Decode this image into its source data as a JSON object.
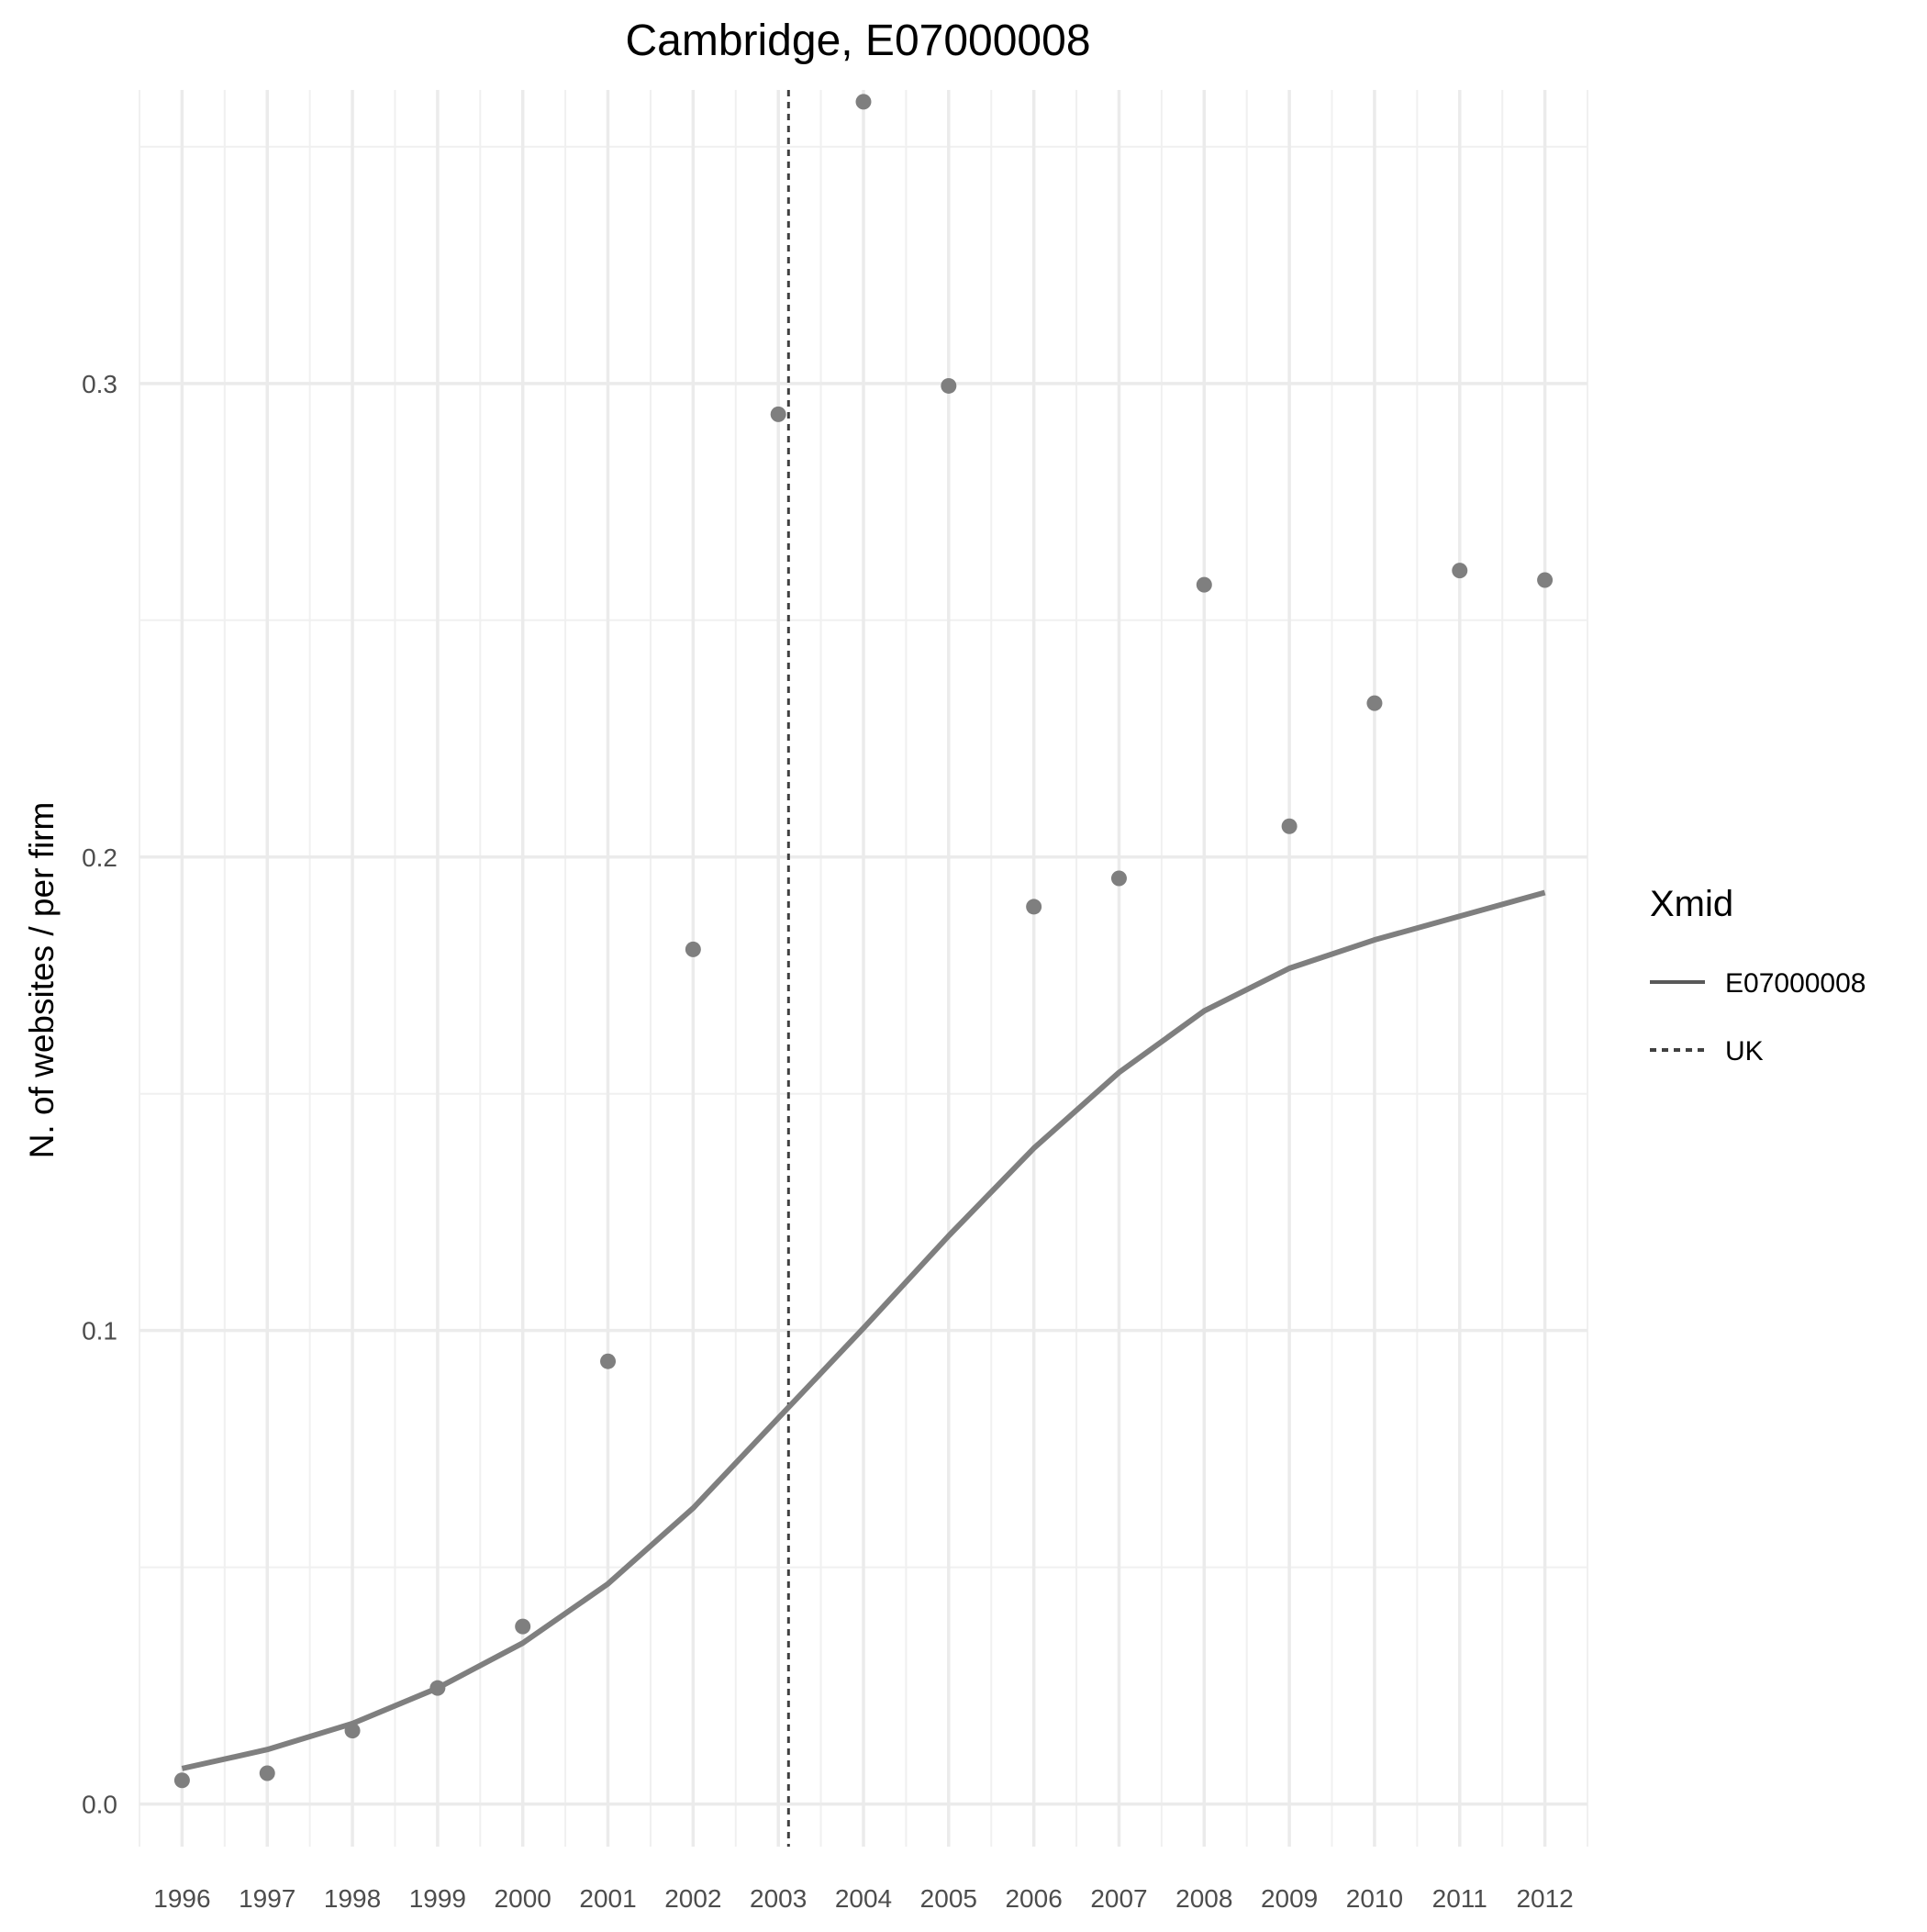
{
  "chart_data": {
    "type": "line",
    "title": "Cambridge, E07000008",
    "xlabel": "",
    "ylabel": "N. of websites / per firm",
    "x": [
      1996,
      1997,
      1998,
      1999,
      2000,
      2001,
      2002,
      2003,
      2004,
      2005,
      2006,
      2007,
      2008,
      2009,
      2010,
      2011,
      2012
    ],
    "x_tick_labels": [
      "1996",
      "1997",
      "1998",
      "1999",
      "2000",
      "2001",
      "2002",
      "2003",
      "2004",
      "2005",
      "2006",
      "2007",
      "2008",
      "2009",
      "2010",
      "2011",
      "2012"
    ],
    "y_ticks": [
      0.0,
      0.1,
      0.2,
      0.3
    ],
    "y_tick_labels": [
      "0.0",
      "0.1",
      "0.2",
      "0.3"
    ],
    "xlim": [
      1995.5,
      2012.5
    ],
    "ylim": [
      -0.009,
      0.362
    ],
    "grid": true,
    "series": [
      {
        "kind": "points",
        "values": [
          0.005,
          0.0065,
          0.0155,
          0.0245,
          0.0375,
          0.0935,
          0.1805,
          0.2935,
          0.3595,
          0.2995,
          0.1895,
          0.1955,
          0.2575,
          0.2065,
          0.2325,
          0.2605,
          0.2585
        ],
        "color": "#7f7f7f"
      },
      {
        "kind": "line",
        "name": "E07000008",
        "values": [
          0.0075,
          0.0115,
          0.017,
          0.0245,
          0.034,
          0.0465,
          0.0625,
          0.0815,
          0.1005,
          0.12,
          0.1385,
          0.1545,
          0.1675,
          0.1765,
          0.1825,
          0.1875,
          0.1925
        ],
        "color": "#7f7f7f"
      }
    ],
    "vlines": [
      {
        "name": "UK",
        "x": 2003.12,
        "style": "dotted",
        "color": "#404040"
      }
    ],
    "legend": {
      "title": "Xmid",
      "placement": "right",
      "entries": [
        {
          "label": "E07000008",
          "style": "solid",
          "color": "#595959"
        },
        {
          "label": "UK",
          "style": "dotted",
          "color": "#404040"
        }
      ]
    }
  }
}
